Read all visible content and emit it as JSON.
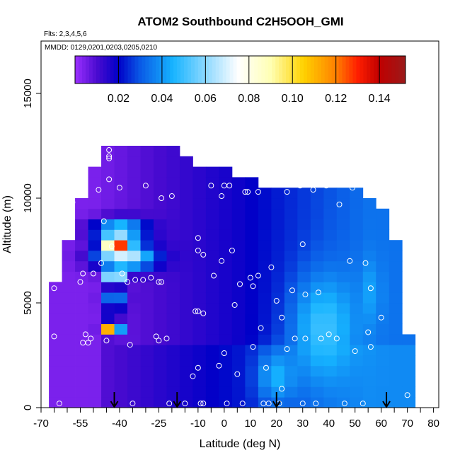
{
  "chart_data": {
    "type": "heatmap",
    "title": "ATOM2 Southbound C2H5OOH_GMI",
    "subtitle_flights": "Flts: 2,3,4,5,6",
    "subtitle_dates": "MMDD: 0129,0201,0203,0205,0210",
    "xlabel": "Latitude (deg N)",
    "ylabel": "Altitude (m)",
    "xlim": [
      -70,
      82
    ],
    "ylim": [
      0,
      17500
    ],
    "x_ticks": [
      -70,
      -55,
      -40,
      -25,
      -10,
      0,
      10,
      20,
      30,
      40,
      50,
      60,
      70,
      80
    ],
    "x_tick_labels": [
      "-70",
      "-55",
      "-40",
      "-25",
      "-10",
      "0",
      "10",
      "20",
      "30",
      "40",
      "50",
      "60",
      "70",
      "80"
    ],
    "y_ticks": [
      0,
      5000,
      10000,
      15000
    ],
    "y_tick_labels": [
      "0",
      "5000",
      "10000",
      "15000"
    ],
    "colorbar": {
      "range": [
        0.0,
        0.152
      ],
      "ticks": [
        0.02,
        0.04,
        0.06,
        0.08,
        0.1,
        0.12,
        0.14
      ],
      "tick_labels": [
        "0.02",
        "0.04",
        "0.06",
        "0.08",
        "0.10",
        "0.12",
        "0.14"
      ],
      "stops": [
        {
          "value": 0.0,
          "color": "#9b30ff"
        },
        {
          "value": 0.01,
          "color": "#4b0bd0"
        },
        {
          "value": 0.02,
          "color": "#0000c8"
        },
        {
          "value": 0.03,
          "color": "#0a5ae6"
        },
        {
          "value": 0.045,
          "color": "#16b4ff"
        },
        {
          "value": 0.06,
          "color": "#8cd8ff"
        },
        {
          "value": 0.075,
          "color": "#ffffff"
        },
        {
          "value": 0.09,
          "color": "#ffffb4"
        },
        {
          "value": 0.105,
          "color": "#ffd200"
        },
        {
          "value": 0.12,
          "color": "#ff8000"
        },
        {
          "value": 0.13,
          "color": "#ff1e00"
        },
        {
          "value": 0.14,
          "color": "#c00000"
        },
        {
          "value": 0.152,
          "color": "#9a1a1a"
        }
      ]
    },
    "field": {
      "lat_edges": [
        -67,
        -62,
        -57,
        -52,
        -47,
        -42,
        -37,
        -32,
        -27,
        -22,
        -17,
        -12,
        -7,
        -2,
        3,
        8,
        13,
        18,
        23,
        28,
        33,
        38,
        43,
        48,
        53,
        58,
        63,
        68,
        73
      ],
      "alt_edges": [
        0,
        500,
        1000,
        1500,
        2000,
        2500,
        3000,
        3500,
        4000,
        4500,
        5000,
        5500,
        6000,
        6500,
        7000,
        7500,
        8000,
        8500,
        9000,
        9500,
        10000,
        10500,
        11000,
        11500,
        12000,
        12500
      ],
      "base_top_altitude_by_lat": [
        6000,
        8000,
        10000,
        11500,
        12500,
        12500,
        12500,
        12500,
        12500,
        12500,
        12000,
        11500,
        11500,
        11500,
        11000,
        11000,
        10500,
        10500,
        10500,
        10500,
        10500,
        10500,
        10500,
        10500,
        10000,
        9500,
        8000,
        3500
      ],
      "surface_top_altitude_by_lat": [
        6000,
        8000,
        10000,
        11500,
        12500,
        12500,
        12500,
        12500,
        12500,
        12500,
        12000,
        11500,
        11500,
        11500,
        11000,
        11000,
        10500,
        10500,
        10500,
        10500,
        10500,
        10500,
        10500,
        10500,
        10000,
        9500,
        8000,
        3500
      ],
      "background_ramp": {
        "polar_south": 0.004,
        "tropics": 0.018,
        "north": 0.034
      },
      "features": [
        {
          "lat": -41,
          "alt": 7800,
          "value": 0.14,
          "lat_half_width": 5,
          "alt_half_height": 500
        },
        {
          "lat": -40,
          "alt": 8500,
          "value": 0.055,
          "lat_half_width": 10,
          "alt_half_height": 500
        },
        {
          "lat": -38,
          "alt": 7200,
          "value": 0.07,
          "lat_half_width": 11,
          "alt_half_height": 600
        },
        {
          "lat": -42,
          "alt": 6300,
          "value": 0.11,
          "lat_half_width": 3,
          "alt_half_height": 300
        },
        {
          "lat": -42,
          "alt": 5200,
          "value": 0.045,
          "lat_half_width": 4,
          "alt_half_height": 500
        },
        {
          "lat": -43,
          "alt": 3800,
          "value": 0.145,
          "lat_half_width": 3,
          "alt_half_height": 300
        },
        {
          "lat": 38,
          "alt": 3800,
          "value": 0.05,
          "lat_half_width": 12,
          "alt_half_height": 2500
        },
        {
          "lat": 20,
          "alt": 1500,
          "value": 0.045,
          "lat_half_width": 7,
          "alt_half_height": 1200
        },
        {
          "lat": 56,
          "alt": 5500,
          "value": 0.042,
          "lat_half_width": 4,
          "alt_half_height": 1500
        }
      ]
    },
    "sample_points": [
      {
        "lat": -65,
        "alt": 5700
      },
      {
        "lat": -65,
        "alt": 3400
      },
      {
        "lat": -63,
        "alt": 200
      },
      {
        "lat": -58,
        "alt": 9800
      },
      {
        "lat": -55,
        "alt": 6000
      },
      {
        "lat": -54,
        "alt": 6400
      },
      {
        "lat": -53,
        "alt": 3500
      },
      {
        "lat": -54,
        "alt": 3100
      },
      {
        "lat": -52,
        "alt": 3100
      },
      {
        "lat": -51,
        "alt": 3300
      },
      {
        "lat": -50,
        "alt": 6400
      },
      {
        "lat": -48,
        "alt": 10400
      },
      {
        "lat": -47,
        "alt": 6900
      },
      {
        "lat": -46,
        "alt": 8900
      },
      {
        "lat": -45,
        "alt": 3200
      },
      {
        "lat": -44,
        "alt": 12000
      },
      {
        "lat": -44,
        "alt": 12300
      },
      {
        "lat": -44,
        "alt": 11900
      },
      {
        "lat": -44,
        "alt": 10900
      },
      {
        "lat": -43,
        "alt": 7700
      },
      {
        "lat": -40,
        "alt": 10500
      },
      {
        "lat": -39,
        "alt": 6400
      },
      {
        "lat": -37,
        "alt": 6000
      },
      {
        "lat": -36,
        "alt": 3000
      },
      {
        "lat": -35,
        "alt": 200
      },
      {
        "lat": -34,
        "alt": 6100
      },
      {
        "lat": -31,
        "alt": 6100
      },
      {
        "lat": -30,
        "alt": 10600
      },
      {
        "lat": -28,
        "alt": 6200
      },
      {
        "lat": -26,
        "alt": 3400
      },
      {
        "lat": -25,
        "alt": 6000
      },
      {
        "lat": -25,
        "alt": 3200
      },
      {
        "lat": -24,
        "alt": 10000
      },
      {
        "lat": -24,
        "alt": 6000
      },
      {
        "lat": -22,
        "alt": 3300
      },
      {
        "lat": -21,
        "alt": 200
      },
      {
        "lat": -20,
        "alt": 10100
      },
      {
        "lat": -15,
        "alt": 200
      },
      {
        "lat": -12,
        "alt": 1500
      },
      {
        "lat": -11,
        "alt": 4600
      },
      {
        "lat": -10,
        "alt": 11900
      },
      {
        "lat": -10,
        "alt": 8100
      },
      {
        "lat": -10,
        "alt": 7500
      },
      {
        "lat": -10,
        "alt": 4600
      },
      {
        "lat": -10,
        "alt": 1900
      },
      {
        "lat": -9,
        "alt": 200
      },
      {
        "lat": -8,
        "alt": 7300
      },
      {
        "lat": -8,
        "alt": 4500
      },
      {
        "lat": -8,
        "alt": 200
      },
      {
        "lat": -5,
        "alt": 10600
      },
      {
        "lat": -4,
        "alt": 6300
      },
      {
        "lat": -2,
        "alt": 2000
      },
      {
        "lat": -1,
        "alt": 10100
      },
      {
        "lat": -1,
        "alt": 7000
      },
      {
        "lat": 0,
        "alt": 10600
      },
      {
        "lat": 0,
        "alt": 2600
      },
      {
        "lat": 1,
        "alt": 200
      },
      {
        "lat": 2,
        "alt": 10600
      },
      {
        "lat": 3,
        "alt": 7500
      },
      {
        "lat": 4,
        "alt": 4900
      },
      {
        "lat": 5,
        "alt": 1600
      },
      {
        "lat": 6,
        "alt": 5900
      },
      {
        "lat": 7,
        "alt": 200
      },
      {
        "lat": 8,
        "alt": 10300
      },
      {
        "lat": 9,
        "alt": 10300
      },
      {
        "lat": 10,
        "alt": 6200
      },
      {
        "lat": 11,
        "alt": 2900
      },
      {
        "lat": 11,
        "alt": 5800
      },
      {
        "lat": 13,
        "alt": 10300
      },
      {
        "lat": 13,
        "alt": 6300
      },
      {
        "lat": 14,
        "alt": 3800
      },
      {
        "lat": 15,
        "alt": 200
      },
      {
        "lat": 16,
        "alt": 1900
      },
      {
        "lat": 17,
        "alt": 200
      },
      {
        "lat": 18,
        "alt": 6700
      },
      {
        "lat": 20,
        "alt": 5100
      },
      {
        "lat": 21,
        "alt": 200
      },
      {
        "lat": 22,
        "alt": 4300
      },
      {
        "lat": 22,
        "alt": 900
      },
      {
        "lat": 24,
        "alt": 10300
      },
      {
        "lat": 24,
        "alt": 2800
      },
      {
        "lat": 26,
        "alt": 5600
      },
      {
        "lat": 27,
        "alt": 3300
      },
      {
        "lat": 29,
        "alt": 10600
      },
      {
        "lat": 30,
        "alt": 7800
      },
      {
        "lat": 30,
        "alt": 200
      },
      {
        "lat": 31,
        "alt": 5400
      },
      {
        "lat": 31,
        "alt": 3300
      },
      {
        "lat": 34,
        "alt": 10400
      },
      {
        "lat": 35,
        "alt": 200
      },
      {
        "lat": 36,
        "alt": 5500
      },
      {
        "lat": 37,
        "alt": 3300
      },
      {
        "lat": 39,
        "alt": 10600
      },
      {
        "lat": 40,
        "alt": 3500
      },
      {
        "lat": 43,
        "alt": 3300
      },
      {
        "lat": 44,
        "alt": 9700
      },
      {
        "lat": 46,
        "alt": 200
      },
      {
        "lat": 48,
        "alt": 7000
      },
      {
        "lat": 49,
        "alt": 10500
      },
      {
        "lat": 50,
        "alt": 2700
      },
      {
        "lat": 53,
        "alt": 200
      },
      {
        "lat": 54,
        "alt": 6900
      },
      {
        "lat": 55,
        "alt": 3600
      },
      {
        "lat": 56,
        "alt": 2900
      },
      {
        "lat": 56,
        "alt": 5700
      },
      {
        "lat": 60,
        "alt": 4300
      },
      {
        "lat": 70,
        "alt": 600
      }
    ],
    "arrows_at_lat": [
      -42,
      -18,
      20,
      62
    ]
  }
}
